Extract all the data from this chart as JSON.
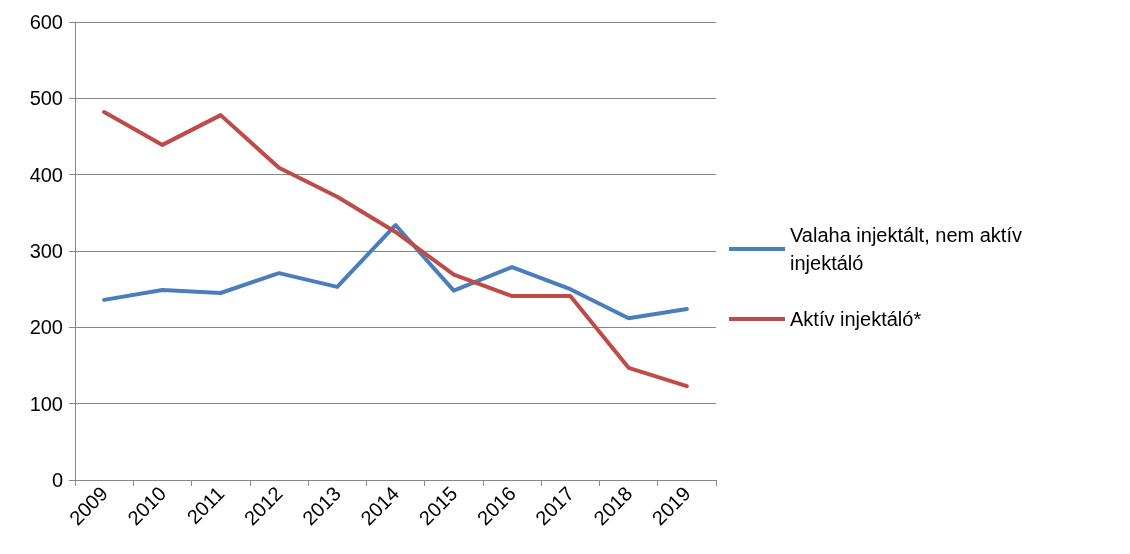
{
  "chart_data": {
    "type": "line",
    "categories": [
      "2009",
      "2010",
      "2011",
      "2012",
      "2013",
      "2014",
      "2015",
      "2016",
      "2017",
      "2018",
      "2019"
    ],
    "series": [
      {
        "name": "Valaha injektált, nem aktív injektáló",
        "color": "#4a7ebb",
        "values": [
          236,
          249,
          245,
          271,
          253,
          334,
          248,
          279,
          250,
          212,
          224
        ]
      },
      {
        "name": "Aktív injektáló*",
        "color": "#be4b48",
        "values": [
          482,
          439,
          478,
          409,
          371,
          325,
          269,
          241,
          241,
          147,
          123
        ]
      }
    ],
    "ylim": [
      0,
      600
    ],
    "yticks": [
      0,
      100,
      200,
      300,
      400,
      500,
      600
    ],
    "grid": "y",
    "legend": "right",
    "marker": "none",
    "line_style": "solid"
  }
}
